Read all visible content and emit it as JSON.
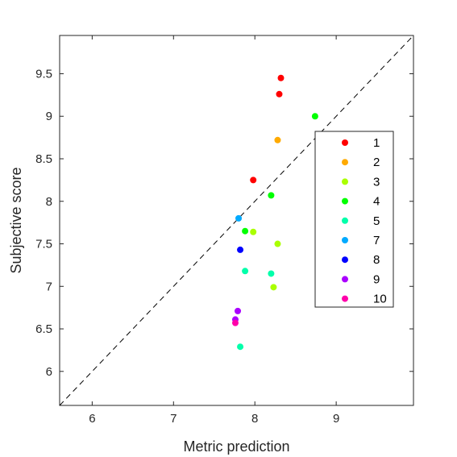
{
  "chart_data": {
    "type": "scatter",
    "title": "",
    "xlabel": "Metric prediction",
    "ylabel": "Subjective score",
    "xlim": [
      5.6,
      9.95
    ],
    "ylim": [
      5.6,
      9.95
    ],
    "xticks": [
      "6",
      "7",
      "8",
      "9"
    ],
    "yticks": [
      "6",
      "6.5",
      "7",
      "7.5",
      "8",
      "8.5",
      "9",
      "9.5"
    ],
    "grid": false,
    "reference_line": "y = x (dashed)",
    "legend_placement": "right",
    "series": [
      {
        "name": "1",
        "color": "#ff0000",
        "points": [
          [
            8.32,
            9.45
          ],
          [
            8.3,
            9.26
          ],
          [
            7.98,
            8.25
          ]
        ]
      },
      {
        "name": "2",
        "color": "#ffaa00",
        "points": [
          [
            8.28,
            8.72
          ]
        ]
      },
      {
        "name": "3",
        "color": "#aaff00",
        "points": [
          [
            7.98,
            7.64
          ],
          [
            8.28,
            7.5
          ],
          [
            8.23,
            6.99
          ]
        ]
      },
      {
        "name": "4",
        "color": "#00ff00",
        "points": [
          [
            8.74,
            9.0
          ],
          [
            8.2,
            8.07
          ],
          [
            7.88,
            7.65
          ]
        ]
      },
      {
        "name": "5",
        "color": "#00ffaa",
        "points": [
          [
            7.88,
            7.18
          ],
          [
            8.2,
            7.15
          ],
          [
            7.82,
            6.29
          ]
        ]
      },
      {
        "name": "7",
        "color": "#00aaff",
        "points": [
          [
            7.8,
            7.8
          ]
        ]
      },
      {
        "name": "8",
        "color": "#0000ff",
        "points": [
          [
            7.82,
            7.43
          ]
        ]
      },
      {
        "name": "9",
        "color": "#aa00ff",
        "points": [
          [
            7.79,
            6.71
          ],
          [
            7.76,
            6.61
          ]
        ]
      },
      {
        "name": "10",
        "color": "#ff00aa",
        "points": [
          [
            7.76,
            6.57
          ]
        ]
      }
    ]
  }
}
